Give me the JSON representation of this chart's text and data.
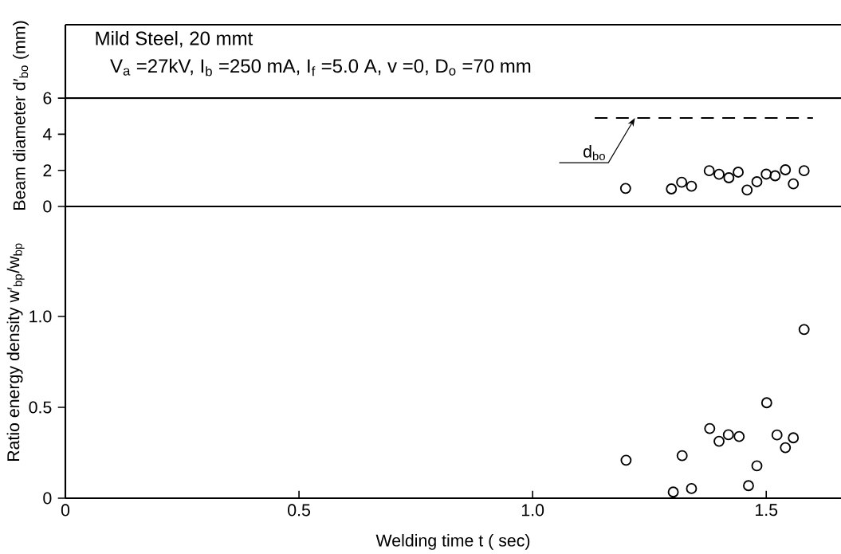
{
  "chart_data": [
    {
      "type": "scatter",
      "title": "Mild Steel,  20 mmt",
      "subtitle": "V$_{a}$ =27kV,  I$_{b}$ =250 mA,  I$_{f}$ =5.0 A,  v =0,  D$_{o}$ =70 mm",
      "ylabel": "Beam diameter  d′$_{bo}$ (mm)",
      "xlim": [
        0,
        1.66
      ],
      "ylim": [
        0,
        10.07
      ],
      "yticks": [
        0,
        2,
        4,
        6
      ],
      "tick_labels": "y",
      "marker": "circle",
      "series": [
        {
          "color": "#000000",
          "x": [
            1.199,
            1.297,
            1.319,
            1.34,
            1.378,
            1.399,
            1.42,
            1.44,
            1.459,
            1.48,
            1.5,
            1.519,
            1.541,
            1.558,
            1.581
          ],
          "values": [
            1.0,
            0.97,
            1.34,
            1.12,
            1.98,
            1.78,
            1.59,
            1.9,
            0.91,
            1.37,
            1.79,
            1.7,
            2.03,
            1.25,
            1.98
          ]
        },
        {
          "type": "line",
          "color": "#000000",
          "marker": "none",
          "line_style": "dashed",
          "x": [
            1.133,
            1.6
          ],
          "values": [
            4.9,
            4.9
          ]
        }
      ],
      "ref_lines": [
        {
          "axis": "y",
          "value": 6,
          "color": "#000000"
        }
      ],
      "annotations": [
        {
          "text": "d$_{bo}$",
          "x": 1.219,
          "y": 4.9
        }
      ]
    },
    {
      "type": "scatter",
      "xlabel": "Welding  time   t    ( sec)",
      "ylabel": "Ratio energy density   w′$_{bp}$/w$_{bp}$",
      "xlim": [
        0,
        1.66
      ],
      "xticks": [
        0,
        {
          "value": 0.5,
          "label": "0.5"
        },
        {
          "value": 1.0,
          "label": "1.0"
        },
        1.5
      ],
      "ylim": [
        0,
        1.605
      ],
      "yticks": [
        0,
        {
          "value": 0.5,
          "label": "0.5"
        },
        {
          "value": 1.0,
          "label": "1.0"
        }
      ],
      "marker": "circle",
      "series": [
        {
          "color": "#000000",
          "x": [
            1.2,
            1.301,
            1.32,
            1.34,
            1.379,
            1.399,
            1.419,
            1.442,
            1.462,
            1.48,
            1.501,
            1.523,
            1.541,
            1.558,
            1.581
          ],
          "values": [
            0.209,
            0.034,
            0.234,
            0.053,
            0.383,
            0.313,
            0.349,
            0.339,
            0.069,
            0.178,
            0.525,
            0.348,
            0.278,
            0.332,
            0.928
          ]
        }
      ]
    }
  ]
}
